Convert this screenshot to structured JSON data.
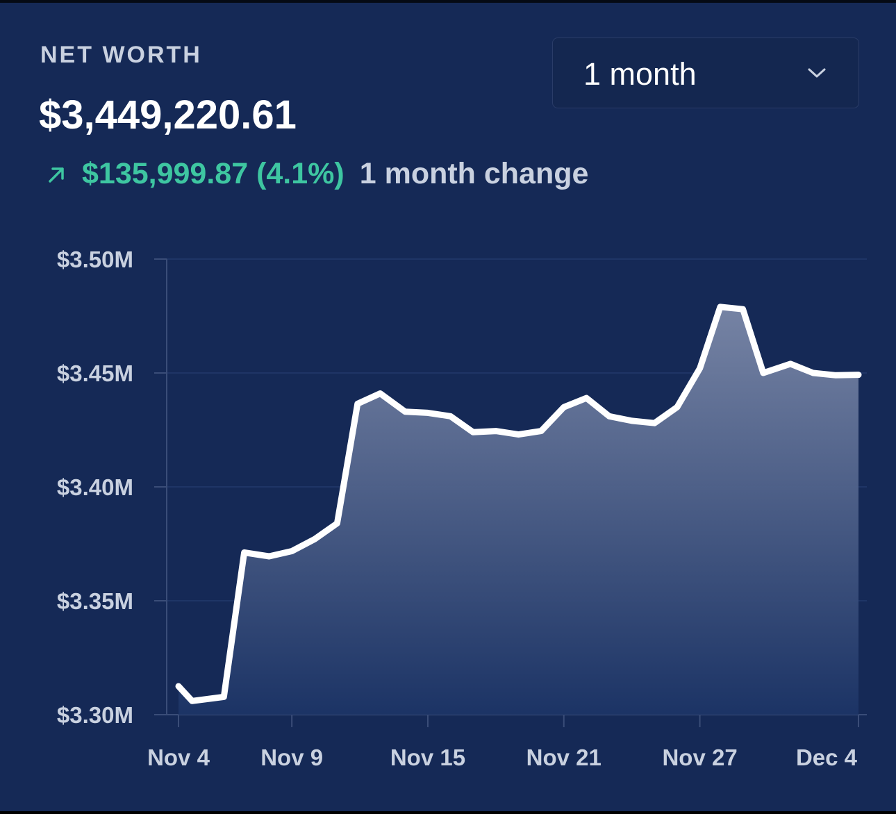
{
  "header": {
    "title": "NET WORTH",
    "value": "$3,449,220.61",
    "change_amount": "$135,999.87 (4.1%)",
    "change_label": "1 month change",
    "change_icon": "arrow-up-right-icon"
  },
  "range_select": {
    "selected": "1 month",
    "icon": "chevron-down-icon"
  },
  "colors": {
    "background": "#152956",
    "accent_positive": "#3ec6a1",
    "line": "#ffffff"
  },
  "chart_data": {
    "type": "area",
    "x_tick_labels": [
      "Nov 4",
      "Nov 9",
      "Nov 15",
      "Nov 21",
      "Nov 27",
      "Dec 4"
    ],
    "x_tick_days": [
      0,
      5,
      11,
      17,
      23,
      30
    ],
    "y_tick_labels": [
      "$3.50M",
      "$3.45M",
      "$3.40M",
      "$3.35M",
      "$3.30M"
    ],
    "ylim": [
      3.3,
      3.5
    ],
    "grid": true,
    "series": [
      {
        "values": [
          [
            0,
            3.3125
          ],
          [
            0.6,
            3.306
          ],
          [
            2.0,
            3.3078
          ],
          [
            2.9,
            3.3712
          ],
          [
            4.0,
            3.3695
          ],
          [
            5.0,
            3.3718
          ],
          [
            6.0,
            3.377
          ],
          [
            7.0,
            3.384
          ],
          [
            7.9,
            3.4365
          ],
          [
            8.9,
            3.441
          ],
          [
            10.0,
            3.433
          ],
          [
            11.0,
            3.4325
          ],
          [
            12.0,
            3.431
          ],
          [
            13.0,
            3.424
          ],
          [
            14.0,
            3.4245
          ],
          [
            15.0,
            3.423
          ],
          [
            16.0,
            3.4245
          ],
          [
            17.0,
            3.435
          ],
          [
            18.0,
            3.439
          ],
          [
            19.0,
            3.431
          ],
          [
            20.0,
            3.429
          ],
          [
            21.0,
            3.428
          ],
          [
            22.0,
            3.435
          ],
          [
            23.0,
            3.452
          ],
          [
            23.9,
            3.479
          ],
          [
            24.9,
            3.478
          ],
          [
            25.8,
            3.45
          ],
          [
            27.0,
            3.454
          ],
          [
            28.0,
            3.45
          ],
          [
            29.0,
            3.449
          ],
          [
            30.0,
            3.4492
          ]
        ]
      }
    ]
  }
}
